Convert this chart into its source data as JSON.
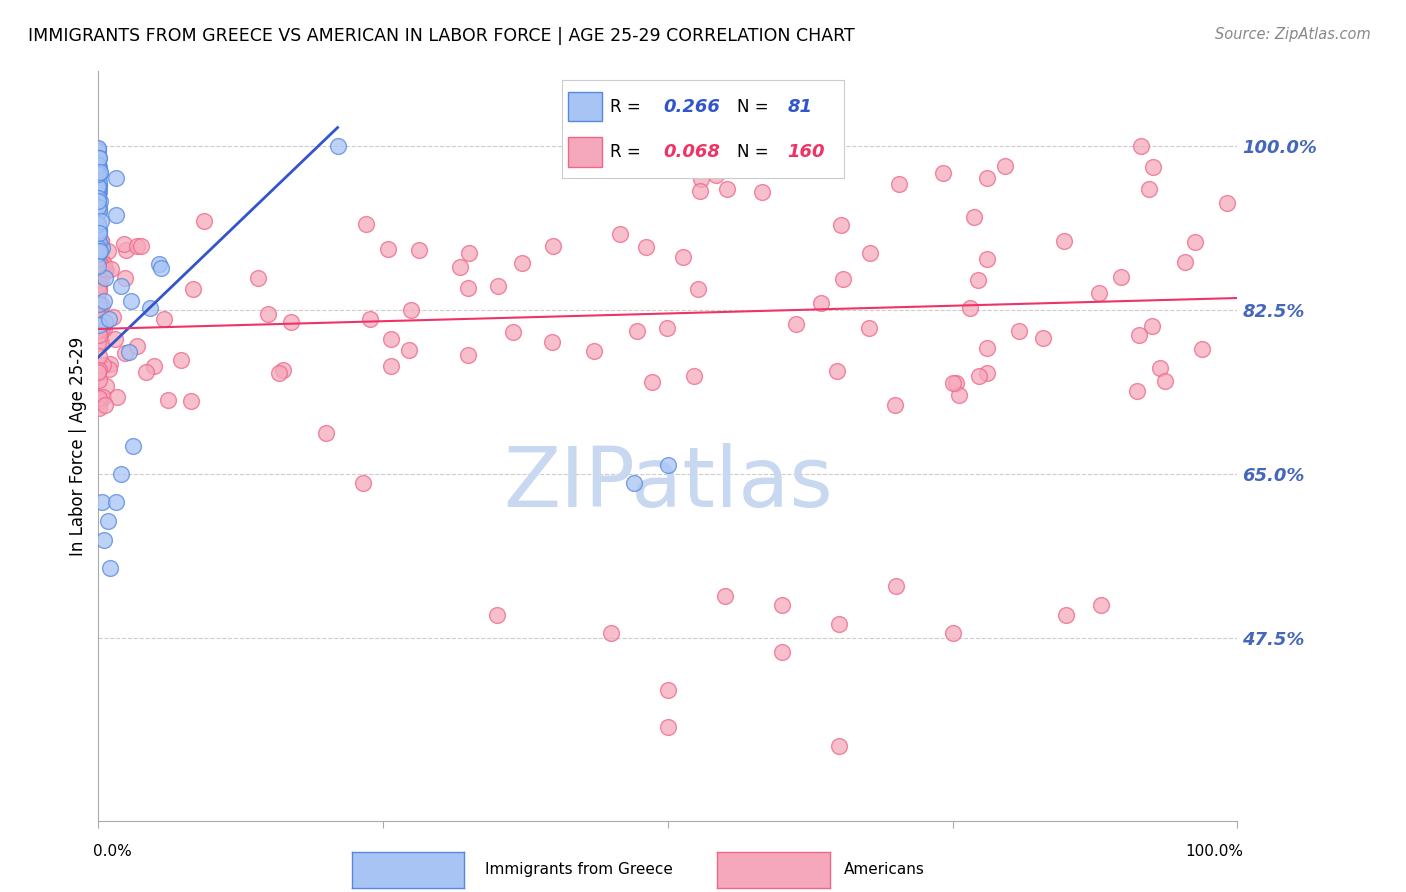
{
  "title": "IMMIGRANTS FROM GREECE VS AMERICAN IN LABOR FORCE | AGE 25-29 CORRELATION CHART",
  "source": "Source: ZipAtlas.com",
  "ylabel": "In Labor Force | Age 25-29",
  "legend_blue_r": "0.266",
  "legend_blue_n": "81",
  "legend_pink_r": "0.068",
  "legend_pink_n": "160",
  "legend_label_blue": "Immigrants from Greece",
  "legend_label_pink": "Americans",
  "blue_face": "#a8c4f5",
  "blue_edge": "#5588dd",
  "pink_face": "#f5a8bb",
  "pink_edge": "#ee6688",
  "trendline_blue": "#3355cc",
  "trendline_pink": "#ee3366",
  "ytick_color": "#4466bb",
  "watermark_color": "#c8d8f0",
  "ytick_vals": [
    1.0,
    0.825,
    0.65,
    0.475
  ],
  "ytick_labels": [
    "100.0%",
    "82.5%",
    "65.0%",
    "47.5%"
  ],
  "xlim": [
    0.0,
    1.0
  ],
  "ylim": [
    0.28,
    1.08
  ],
  "blue_trend_x": [
    0.0,
    0.21
  ],
  "blue_trend_y": [
    0.775,
    1.02
  ],
  "pink_trend_x": [
    0.0,
    1.0
  ],
  "pink_trend_y": [
    0.805,
    0.838
  ]
}
